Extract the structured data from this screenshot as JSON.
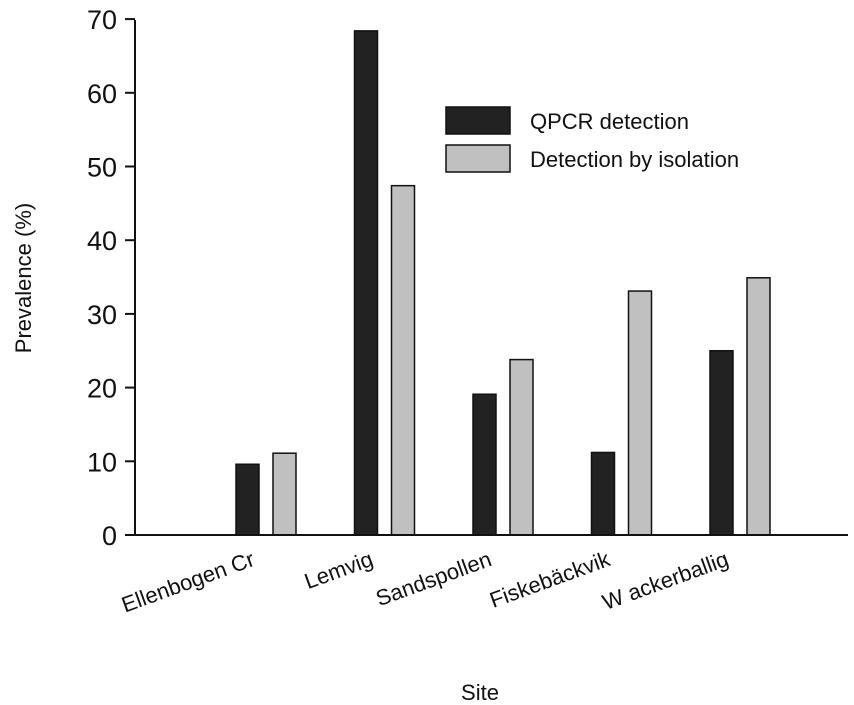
{
  "chart_data": {
    "type": "bar",
    "title": "",
    "xlabel": "Site",
    "ylabel": "Prevalence (%)",
    "categories": [
      "Ellenbogen Cr",
      "Lemvig",
      "Sandspollen",
      "Fiskebäckvik",
      "W ackerballig"
    ],
    "ylim": [
      0,
      70
    ],
    "yticks": [
      0,
      10,
      20,
      30,
      40,
      50,
      60,
      70
    ],
    "series": [
      {
        "name": "QPCR detection",
        "values": [
          9.6,
          68.4,
          19.1,
          11.2,
          25.0
        ],
        "color": "#222222"
      },
      {
        "name": "Detection by isolation",
        "values": [
          11.1,
          47.4,
          23.8,
          33.1,
          34.9
        ],
        "color": "#c0c0c0"
      }
    ],
    "grid": false,
    "legend_position": "top-right"
  }
}
